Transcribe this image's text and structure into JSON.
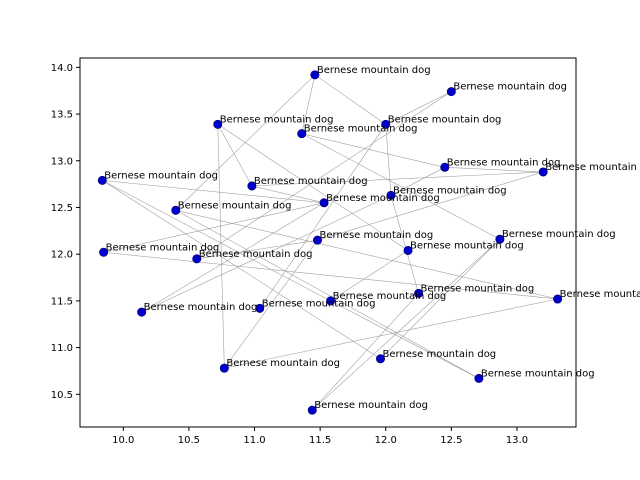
{
  "chart_data": {
    "type": "scatter",
    "title": "",
    "xlabel": "",
    "ylabel": "",
    "xlim": [
      9.67,
      13.45
    ],
    "ylim": [
      10.15,
      14.1
    ],
    "xticks": [
      10.0,
      10.5,
      11.0,
      11.5,
      12.0,
      12.5,
      13.0
    ],
    "xtick_labels": [
      "10.0",
      "10.5",
      "11.0",
      "11.5",
      "12.0",
      "12.5",
      "13.0"
    ],
    "yticks": [
      10.5,
      11.0,
      11.5,
      12.0,
      12.5,
      13.0,
      13.5,
      14.0
    ],
    "ytick_labels": [
      "10.5",
      "11.0",
      "11.5",
      "12.0",
      "12.5",
      "13.0",
      "13.5",
      "14.0"
    ],
    "grid": false,
    "marker_color": "#0000cc",
    "line_color": "#a0a0a0",
    "points": [
      {
        "label": "Bernese mountain dog",
        "x": 11.46,
        "y": 13.92
      },
      {
        "label": "Bernese mountain dog",
        "x": 12.5,
        "y": 13.74
      },
      {
        "label": "Bernese mountain dog",
        "x": 10.72,
        "y": 13.39
      },
      {
        "label": "Bernese mountain dog",
        "x": 12.0,
        "y": 13.39
      },
      {
        "label": "Bernese mountain dog",
        "x": 11.36,
        "y": 13.29
      },
      {
        "label": "Bernese mountain dog",
        "x": 12.45,
        "y": 12.93
      },
      {
        "label": "Bernese mountain dog",
        "x": 13.2,
        "y": 12.88
      },
      {
        "label": "Bernese mountain dog",
        "x": 9.84,
        "y": 12.79
      },
      {
        "label": "Bernese mountain dog",
        "x": 10.98,
        "y": 12.73
      },
      {
        "label": "Bernese mountain dog",
        "x": 12.04,
        "y": 12.63
      },
      {
        "label": "Bernese mountain dog",
        "x": 11.53,
        "y": 12.55
      },
      {
        "label": "Bernese mountain dog",
        "x": 10.4,
        "y": 12.47
      },
      {
        "label": "Bernese mountain dog",
        "x": 12.87,
        "y": 12.16
      },
      {
        "label": "Bernese mountain dog",
        "x": 11.48,
        "y": 12.15
      },
      {
        "label": "Bernese mountain dog",
        "x": 12.17,
        "y": 12.04
      },
      {
        "label": "Bernese mountain dog",
        "x": 9.85,
        "y": 12.02
      },
      {
        "label": "Bernese mountain dog",
        "x": 10.56,
        "y": 11.95
      },
      {
        "label": "Bernese mountain dog",
        "x": 12.25,
        "y": 11.58
      },
      {
        "label": "Bernese mountain dog",
        "x": 13.31,
        "y": 11.52
      },
      {
        "label": "Bernese mountain dog",
        "x": 11.58,
        "y": 11.5
      },
      {
        "label": "Bernese mountain dog",
        "x": 11.04,
        "y": 11.42
      },
      {
        "label": "Bernese mountain dog",
        "x": 10.14,
        "y": 11.38
      },
      {
        "label": "Bernese mountain dog",
        "x": 11.96,
        "y": 10.88
      },
      {
        "label": "Bernese mountain dog",
        "x": 10.77,
        "y": 10.78
      },
      {
        "label": "Bernese mountain dog",
        "x": 12.71,
        "y": 10.67
      },
      {
        "label": "Bernese mountain dog",
        "x": 11.44,
        "y": 10.33
      }
    ],
    "edges": [
      [
        0,
        4
      ],
      [
        0,
        3
      ],
      [
        0,
        11
      ],
      [
        1,
        3
      ],
      [
        1,
        16
      ],
      [
        2,
        8
      ],
      [
        2,
        23
      ],
      [
        2,
        14
      ],
      [
        3,
        9
      ],
      [
        3,
        20
      ],
      [
        4,
        5
      ],
      [
        4,
        12
      ],
      [
        5,
        6
      ],
      [
        5,
        9
      ],
      [
        6,
        8
      ],
      [
        6,
        13
      ],
      [
        7,
        19
      ],
      [
        7,
        10
      ],
      [
        7,
        22
      ],
      [
        8,
        10
      ],
      [
        9,
        17
      ],
      [
        10,
        15
      ],
      [
        10,
        21
      ],
      [
        11,
        18
      ],
      [
        12,
        25
      ],
      [
        13,
        16
      ],
      [
        13,
        23
      ],
      [
        14,
        19
      ],
      [
        15,
        18
      ],
      [
        17,
        25
      ],
      [
        18,
        23
      ],
      [
        19,
        24
      ],
      [
        11,
        24
      ],
      [
        21,
        9
      ],
      [
        22,
        12
      ]
    ]
  }
}
